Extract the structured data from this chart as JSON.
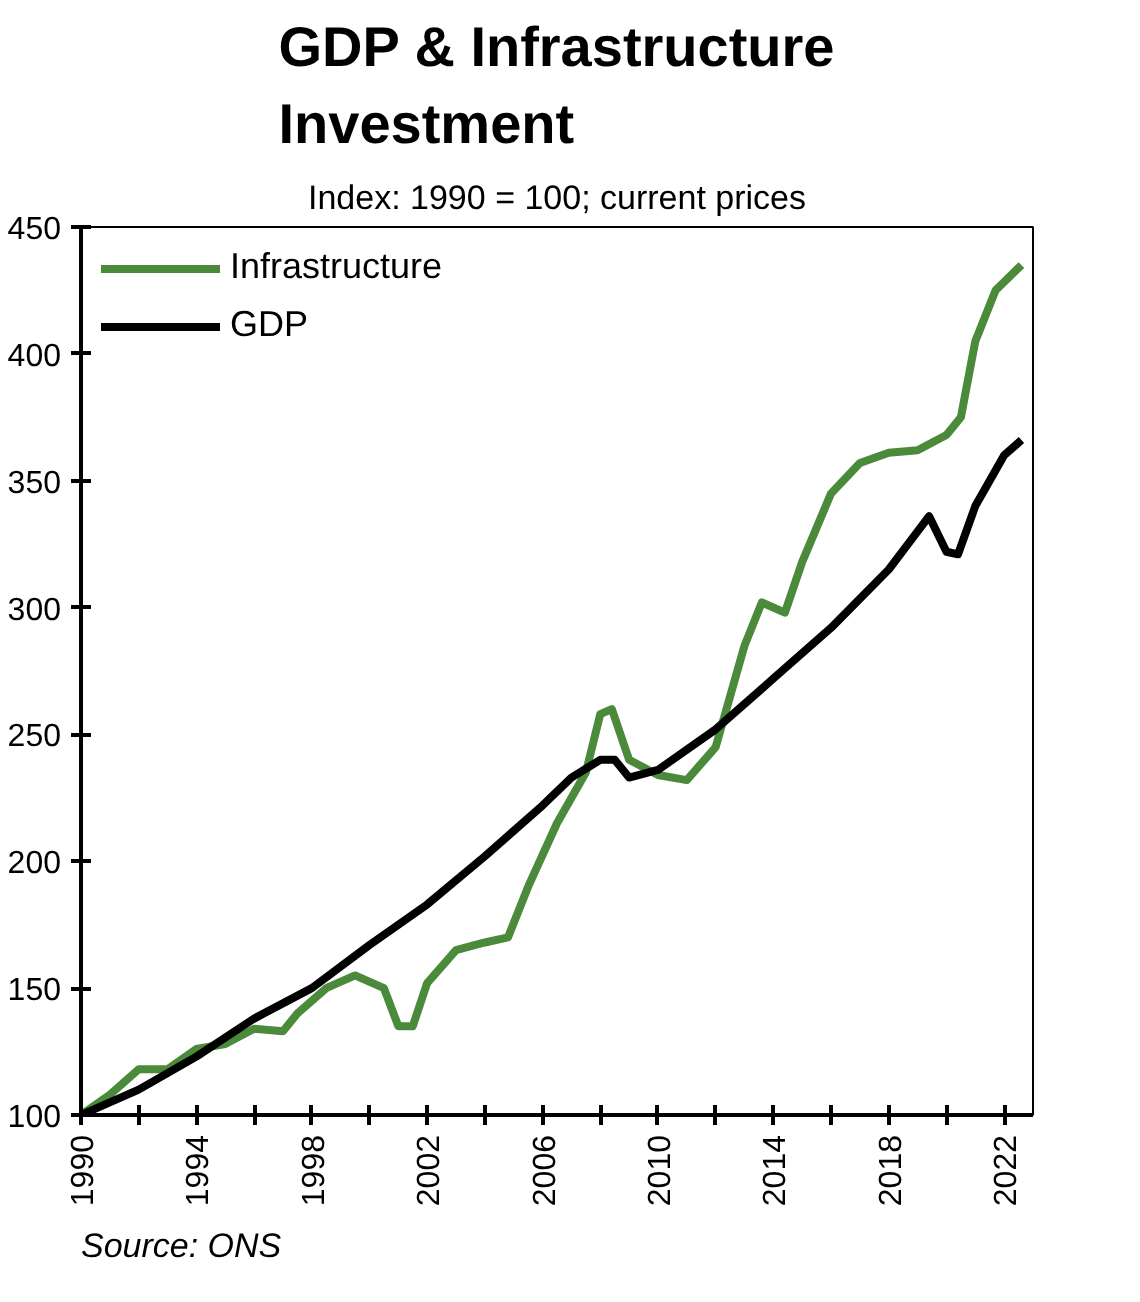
{
  "chart_data": {
    "type": "line",
    "title": "GDP & Infrastructure\nInvestment",
    "subtitle": "Index: 1990 = 100; current prices",
    "series": [
      {
        "name": "Infrastructure",
        "color": "#4a8a3a",
        "x": [
          1990,
          1991,
          1992,
          1993,
          1994,
          1995,
          1996,
          1997,
          1997.5,
          1998.5,
          1999.5,
          2000.5,
          2001,
          2001.5,
          2002,
          2003,
          2004,
          2004.8,
          2005.5,
          2006.5,
          2007.5,
          2008,
          2008.4,
          2009,
          2010,
          2011,
          2012,
          2013,
          2013.6,
          2014.4,
          2015,
          2016,
          2017,
          2018,
          2019,
          2020,
          2020.5,
          2021,
          2021.7,
          2022.6
        ],
        "values": [
          100,
          108,
          118,
          118,
          126,
          128,
          134,
          133,
          140,
          150,
          155,
          150,
          135,
          135,
          152,
          165,
          168,
          170,
          190,
          215,
          235,
          258,
          260,
          240,
          234,
          232,
          245,
          285,
          302,
          298,
          318,
          345,
          357,
          361,
          362,
          368,
          375,
          405,
          425,
          435
        ]
      },
      {
        "name": "GDP",
        "color": "#000000",
        "x": [
          1990,
          1992,
          1994,
          1996,
          1998,
          2000,
          2002,
          2004,
          2006,
          2007,
          2008,
          2008.5,
          2009,
          2010,
          2012,
          2014,
          2016,
          2018,
          2019,
          2019.4,
          2020,
          2020.4,
          2021,
          2022,
          2022.6
        ],
        "values": [
          100,
          110,
          123,
          138,
          150,
          167,
          183,
          202,
          222,
          233,
          240,
          240,
          233,
          236,
          252,
          272,
          292,
          315,
          330,
          336,
          322,
          321,
          340,
          360,
          366
        ]
      }
    ],
    "xlim": [
      1990,
      2023
    ],
    "xticks": [
      1990,
      {
        "value": 1992,
        "label": null
      },
      1994,
      {
        "value": 1996,
        "label": null
      },
      1998,
      {
        "value": 2000,
        "label": null
      },
      2002,
      {
        "value": 2004,
        "label": null
      },
      2006,
      {
        "value": 2008,
        "label": null
      },
      2010,
      {
        "value": 2012,
        "label": null
      },
      2014,
      {
        "value": 2016,
        "label": null
      },
      2018,
      {
        "value": 2020,
        "label": null
      },
      2022
    ],
    "ylim": [
      100,
      450
    ],
    "yticks": [
      100,
      150,
      200,
      250,
      300,
      350,
      400,
      450
    ],
    "grid": false,
    "legend": "top left",
    "marker": "none",
    "line_style": "solid",
    "annotations": [
      "Source: ONS"
    ]
  }
}
